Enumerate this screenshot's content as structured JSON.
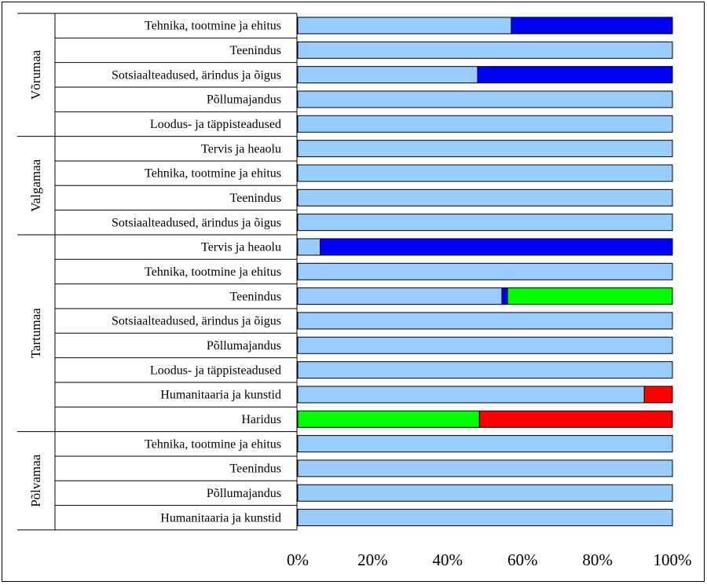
{
  "chart_data": {
    "type": "bar",
    "orientation": "horizontal",
    "stacked": "percent",
    "groups": [
      {
        "name": "Võrumaa",
        "categories": [
          "Tehnika, tootmine ja ehitus",
          "Teenindus",
          "Sotsiaalteadused, ärindus ja õigus",
          "Põllumajandus",
          "Loodus- ja täppisteadused"
        ]
      },
      {
        "name": "Valgamaa",
        "categories": [
          "Tervis ja heaolu",
          "Tehnika, tootmine ja ehitus",
          "Teenindus",
          "Sotsiaalteadused, ärindus ja õigus"
        ]
      },
      {
        "name": "Tartumaa",
        "categories": [
          "Tervis ja heaolu",
          "Tehnika, tootmine ja ehitus",
          "Teenindus",
          "Sotsiaalteadused, ärindus ja õigus",
          "Põllumajandus",
          "Loodus- ja täppisteadused",
          "Humanitaaria ja kunstid",
          "Haridus"
        ]
      },
      {
        "name": "Põlvamaa",
        "categories": [
          "Tehnika, tootmine ja ehitus",
          "Teenindus",
          "Põllumajandus",
          "Humanitaaria ja kunstid"
        ]
      }
    ],
    "series": [
      {
        "color": "#99ccff",
        "values": [
          57,
          100,
          48,
          100,
          100,
          100,
          100,
          100,
          100,
          6,
          100,
          54.5,
          100,
          100,
          100,
          92.5,
          0,
          100,
          100,
          100,
          100
        ]
      },
      {
        "color": "#0000ff",
        "values": [
          43,
          0,
          52,
          0,
          0,
          0,
          0,
          0,
          0,
          94,
          0,
          1.5,
          0,
          0,
          0,
          0,
          0,
          0,
          0,
          0,
          0
        ]
      },
      {
        "color": "#00ff00",
        "values": [
          0,
          0,
          0,
          0,
          0,
          0,
          0,
          0,
          0,
          0,
          0,
          44,
          0,
          0,
          0,
          0,
          48.5,
          0,
          0,
          0,
          0
        ]
      },
      {
        "color": "#ff0000",
        "values": [
          0,
          0,
          0,
          0,
          0,
          0,
          0,
          0,
          0,
          0,
          0,
          0,
          0,
          0,
          0,
          7.5,
          51.5,
          0,
          0,
          0,
          0
        ]
      }
    ],
    "xlim": [
      0,
      100
    ],
    "xticks": [
      "0%",
      "20%",
      "40%",
      "60%",
      "80%",
      "100%"
    ],
    "grid": false,
    "legend": "none"
  }
}
